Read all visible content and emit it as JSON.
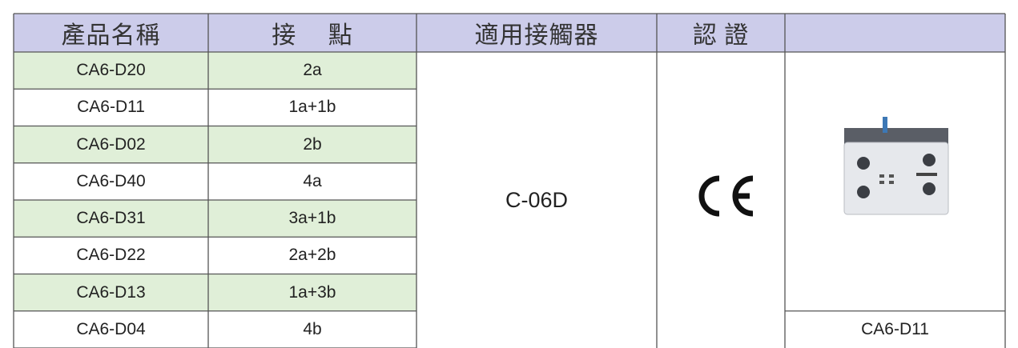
{
  "table": {
    "headers": [
      "產品名稱",
      "接　 點",
      "適用接觸器",
      "認 證"
    ],
    "rows": [
      [
        "CA6-D20",
        "2a"
      ],
      [
        "CA6-D11",
        "1a+1b"
      ],
      [
        "CA6-D02",
        "2b"
      ],
      [
        "CA6-D40",
        "4a"
      ],
      [
        "CA6-D31",
        "3a+1b"
      ],
      [
        "CA6-D22",
        "2a+2b"
      ],
      [
        "CA6-D13",
        "1a+3b"
      ],
      [
        "CA6-D04",
        "4b"
      ]
    ],
    "contactor": "C-06D",
    "image_caption": "CA6-D11"
  }
}
